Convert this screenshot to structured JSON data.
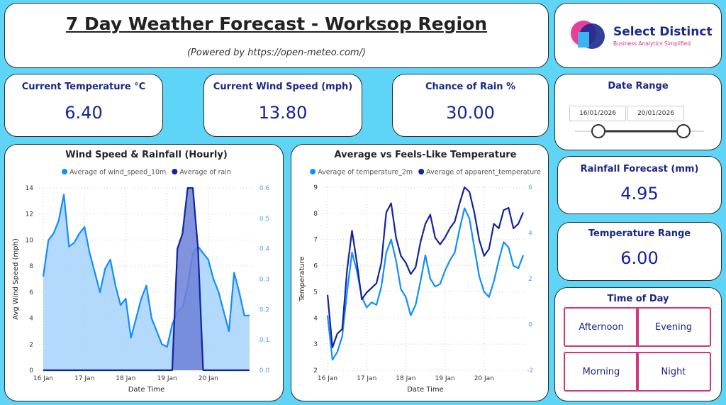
{
  "header": {
    "title": "7 Day Weather Forecast - Worksop Region",
    "subtitle": "(Powered by https://open-meteo.com/)"
  },
  "logo": {
    "name": "Select Distinct",
    "tagline": "Business Analytics Simplified"
  },
  "kpis": [
    {
      "label": "Current Temperature °C",
      "value": "6.40"
    },
    {
      "label": "Current Wind Speed (mph)",
      "value": "13.80"
    },
    {
      "label": "Chance of Rain %",
      "value": "30.00"
    }
  ],
  "date_range": {
    "label": "Date Range",
    "start": "16/01/2026",
    "end": "20/01/2026"
  },
  "rainfall": {
    "label": "Rainfall Forecast (mm)",
    "value": "4.95"
  },
  "temperature_range": {
    "label": "Temperature Range",
    "value": "6.00"
  },
  "time_of_day": {
    "label": "Time of Day",
    "options": [
      "Afternoon",
      "Evening",
      "Morning",
      "Night"
    ]
  },
  "chart_data": [
    {
      "type": "line",
      "title": "Wind Speed & Rainfall (Hourly)",
      "xlabel": "Date Time",
      "ylabel": "Avg Wind Speed (mph)",
      "area": true,
      "grid": true,
      "categories": [
        "16 Jan",
        null,
        null,
        null,
        null,
        null,
        null,
        null,
        "17 Jan",
        null,
        null,
        null,
        null,
        null,
        null,
        null,
        "18 Jan",
        null,
        null,
        null,
        null,
        null,
        null,
        null,
        "19 Jan",
        null,
        null,
        null,
        null,
        null,
        null,
        null,
        "20 Jan",
        null,
        null,
        null,
        null,
        null,
        null,
        null,
        null
      ],
      "series": [
        {
          "name": "Average of wind_speed_10m",
          "color": "#118dff",
          "fill": "#a6d2fb",
          "values": [
            7.2,
            10,
            10.5,
            11.5,
            13.5,
            9.5,
            9.8,
            10.5,
            11,
            9,
            7.5,
            6,
            7.8,
            8.5,
            6.5,
            5,
            5.5,
            2.5,
            4,
            5.5,
            6.5,
            4,
            3,
            2,
            1.8,
            3.5,
            4.5,
            4.8,
            6.5,
            9,
            9.5,
            9,
            8.5,
            7,
            6,
            4.5,
            3,
            7.5,
            6,
            4.2,
            4.2
          ]
        },
        {
          "name": "Average of rain",
          "color": "#12239e",
          "fill": "#6c80d8",
          "axis": "y2",
          "values": [
            0,
            0,
            0,
            0,
            0,
            0,
            0,
            0,
            0,
            0,
            0,
            0,
            0,
            0,
            0,
            0,
            0,
            0,
            0,
            0,
            0,
            0,
            0,
            0,
            0,
            0,
            0.4,
            0.45,
            0.6,
            0.6,
            0.4,
            0,
            0,
            0,
            0,
            0,
            0,
            0,
            0,
            0,
            0
          ]
        }
      ],
      "ylim": [
        0,
        14
      ],
      "yticks": [
        0,
        2,
        4,
        6,
        8,
        10,
        12,
        14
      ],
      "y2lim": [
        0,
        0.6
      ],
      "y2ticks": [
        {
          "value": 0,
          "label": "0.0"
        },
        0.1,
        0.2,
        0.3,
        0.4,
        0.5,
        0.6
      ]
    },
    {
      "type": "line",
      "title": "Average vs Feels-Like Temperature",
      "xlabel": "Date Time",
      "ylabel": "Temperature",
      "area": false,
      "grid": true,
      "categories": [
        "16 Jan",
        null,
        null,
        null,
        null,
        null,
        null,
        null,
        "17 Jan",
        null,
        null,
        null,
        null,
        null,
        null,
        null,
        "18 Jan",
        null,
        null,
        null,
        null,
        null,
        null,
        null,
        "19 Jan",
        null,
        null,
        null,
        null,
        null,
        null,
        null,
        "20 Jan",
        null,
        null,
        null,
        null,
        null,
        null,
        null,
        null
      ],
      "series": [
        {
          "name": "Average of temperature_2m",
          "color": "#118dff",
          "values": [
            4.1,
            2.4,
            2.7,
            3.3,
            5,
            6.5,
            5.8,
            4.8,
            4.4,
            4.6,
            4.5,
            5.2,
            6.5,
            7,
            6.2,
            5.1,
            4.8,
            4.1,
            4.5,
            5.4,
            6.4,
            5.5,
            5.2,
            5.3,
            5.8,
            6.2,
            6.5,
            7.4,
            8.2,
            7.8,
            6.7,
            5.6,
            5,
            4.8,
            5.4,
            6.2,
            6.9,
            6.7,
            6,
            5.9,
            6.4
          ]
        },
        {
          "name": "Average of apparent_temperature",
          "color": "#12239e",
          "axis": "y2",
          "values": [
            1.3,
            -1,
            -0.4,
            -0.2,
            2.4,
            4.1,
            2.7,
            1.1,
            1.4,
            1.6,
            1.8,
            2.7,
            4.9,
            5.3,
            3.8,
            3,
            2.7,
            2.2,
            2.5,
            3.6,
            4.4,
            4.8,
            3.8,
            3.5,
            3.8,
            4.2,
            4.5,
            5.3,
            6,
            5.8,
            4.9,
            3.7,
            3,
            3.3,
            4.4,
            4.2,
            5,
            5.1,
            4.2,
            4.4,
            4.9
          ]
        }
      ],
      "ylim": [
        2,
        9
      ],
      "yticks": [
        2,
        3,
        4,
        5,
        6,
        7,
        8,
        9
      ],
      "y2lim": [
        -2,
        6
      ],
      "y2ticks": [
        -2,
        0,
        2,
        4,
        6
      ]
    }
  ]
}
